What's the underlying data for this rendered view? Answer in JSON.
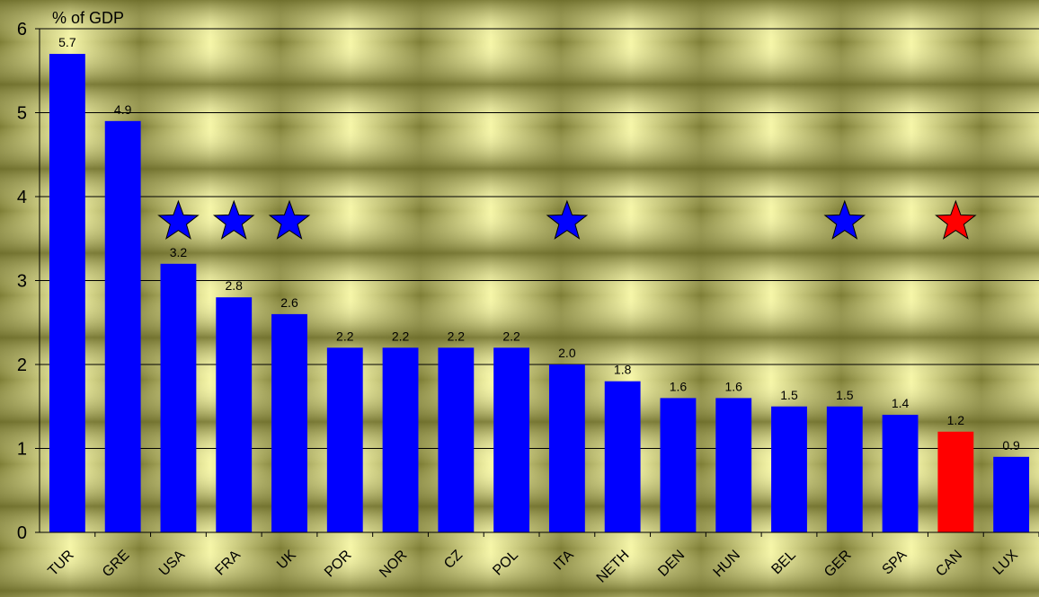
{
  "chart_data": {
    "type": "bar",
    "ylabel": "% of GDP",
    "ylim": [
      0,
      6
    ],
    "yticks": [
      0,
      1,
      2,
      3,
      4,
      5,
      6
    ],
    "grid": true,
    "categories": [
      "TUR",
      "GRE",
      "USA",
      "FRA",
      "UK",
      "POR",
      "NOR",
      "CZ",
      "POL",
      "ITA",
      "NETH",
      "DEN",
      "HUN",
      "BEL",
      "GER",
      "SPA",
      "CAN",
      "LUX"
    ],
    "values": [
      5.7,
      4.9,
      3.2,
      2.8,
      2.6,
      2.2,
      2.2,
      2.2,
      2.2,
      2.0,
      1.8,
      1.6,
      1.6,
      1.5,
      1.5,
      1.4,
      1.2,
      0.9
    ],
    "value_labels": [
      "5.7",
      "4.9",
      "3.2",
      "2.8",
      "2.6",
      "2.2",
      "2.2",
      "2.2",
      "2.2",
      "2.0",
      "1.8",
      "1.6",
      "1.6",
      "1.5",
      "1.5",
      "1.4",
      "1.2",
      "0.9"
    ],
    "bar_colors": [
      "#0000ff",
      "#0000ff",
      "#0000ff",
      "#0000ff",
      "#0000ff",
      "#0000ff",
      "#0000ff",
      "#0000ff",
      "#0000ff",
      "#0000ff",
      "#0000ff",
      "#0000ff",
      "#0000ff",
      "#0000ff",
      "#0000ff",
      "#0000ff",
      "#ff0000",
      "#0000ff"
    ],
    "star_markers": [
      {
        "category": "USA",
        "y": 3.7,
        "color": "#0000ff"
      },
      {
        "category": "FRA",
        "y": 3.7,
        "color": "#0000ff"
      },
      {
        "category": "UK",
        "y": 3.7,
        "color": "#0000ff"
      },
      {
        "category": "ITA",
        "y": 3.7,
        "color": "#0000ff"
      },
      {
        "category": "GER",
        "y": 3.7,
        "color": "#0000ff"
      },
      {
        "category": "CAN",
        "y": 3.7,
        "color": "#ff0000"
      }
    ],
    "background_colors": [
      "#8a8a3a",
      "#f6f6a6"
    ]
  }
}
